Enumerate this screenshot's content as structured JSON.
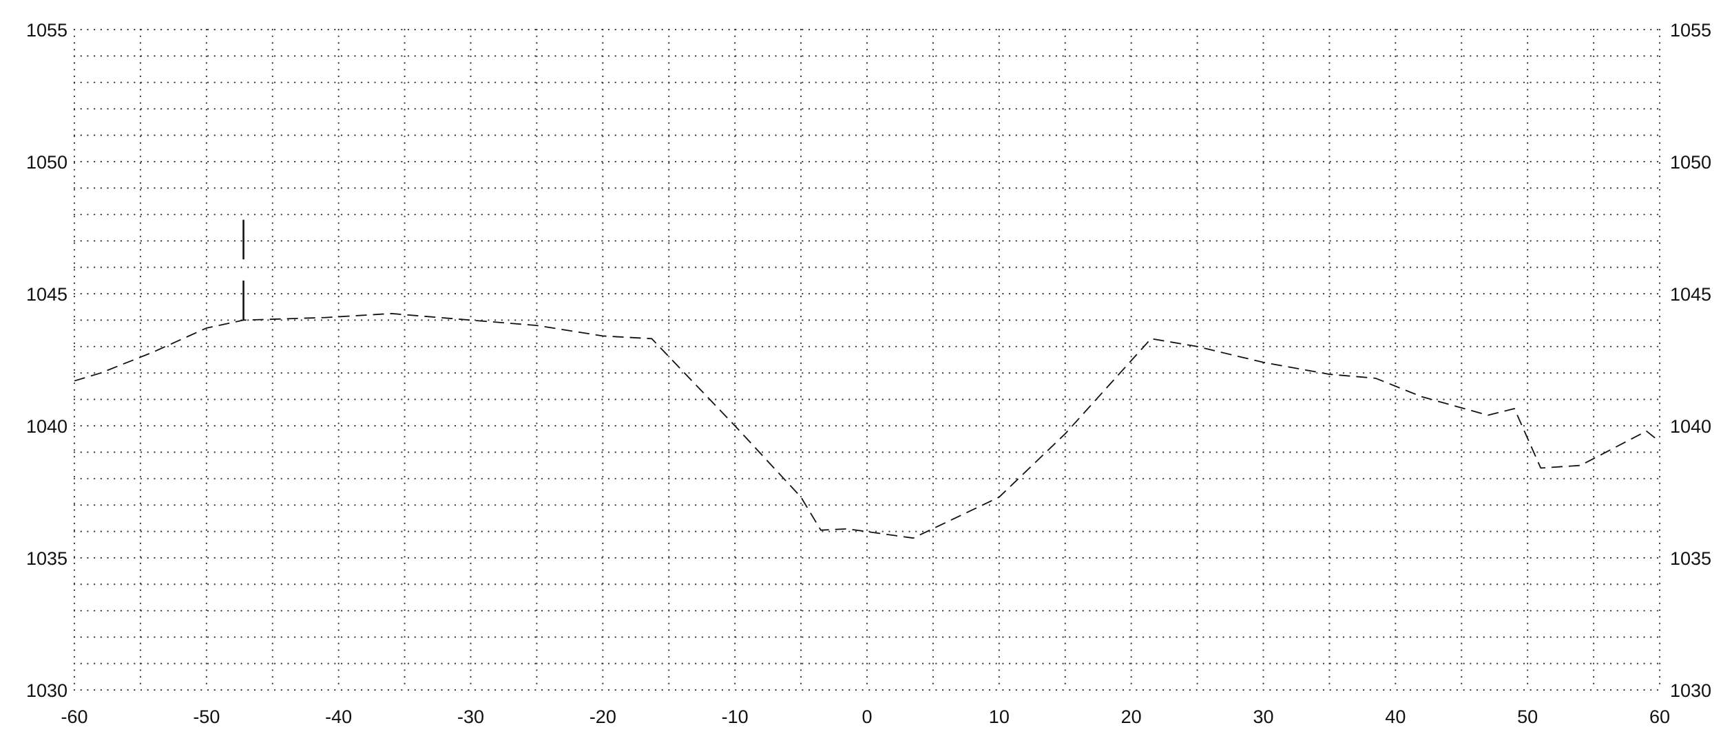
{
  "chart_data": {
    "type": "line",
    "title": "",
    "xlabel": "",
    "ylabel": "",
    "xlim": [
      -60,
      60
    ],
    "ylim": [
      1030,
      1055
    ],
    "x_ticks": [
      "-60",
      "-50",
      "-40",
      "-30",
      "-20",
      "-10",
      "0",
      "10",
      "20",
      "30",
      "40",
      "50",
      "60"
    ],
    "y_ticks": [
      "1030",
      "1035",
      "1040",
      "1045",
      "1050",
      "1055"
    ],
    "x_tick_values": [
      -60,
      -50,
      -40,
      -30,
      -20,
      -10,
      0,
      10,
      20,
      30,
      40,
      50,
      60
    ],
    "y_tick_values": [
      1030,
      1035,
      1040,
      1045,
      1050,
      1055
    ],
    "grid": "dotted",
    "y_axis_labels_both_sides": true,
    "line_color": "#111111",
    "line_style": "dashed",
    "series": [
      {
        "x": [
          -60,
          -58,
          -54,
          -50,
          -47.2,
          -41,
          -36,
          -30,
          -25,
          -20,
          -16.3,
          -10,
          -5,
          -3.5,
          -1.5,
          3.5,
          10,
          15,
          21.5,
          25,
          30,
          35,
          38.5,
          42,
          47,
          49,
          51,
          54,
          59,
          60
        ],
        "y": [
          1041.7,
          1042.0,
          1042.8,
          1043.7,
          1044.0,
          1044.1,
          1044.25,
          1044.0,
          1043.8,
          1043.4,
          1043.3,
          1040.0,
          1037.3,
          1036.05,
          1036.1,
          1035.75,
          1037.3,
          1039.7,
          1043.3,
          1043.0,
          1042.4,
          1041.95,
          1041.8,
          1041.1,
          1040.4,
          1040.65,
          1038.4,
          1038.5,
          1039.8,
          1039.4
        ]
      }
    ],
    "marker": {
      "x": -47.2,
      "segments": [
        [
          1044.0,
          1045.5
        ],
        [
          1046.3,
          1047.8
        ]
      ]
    }
  }
}
